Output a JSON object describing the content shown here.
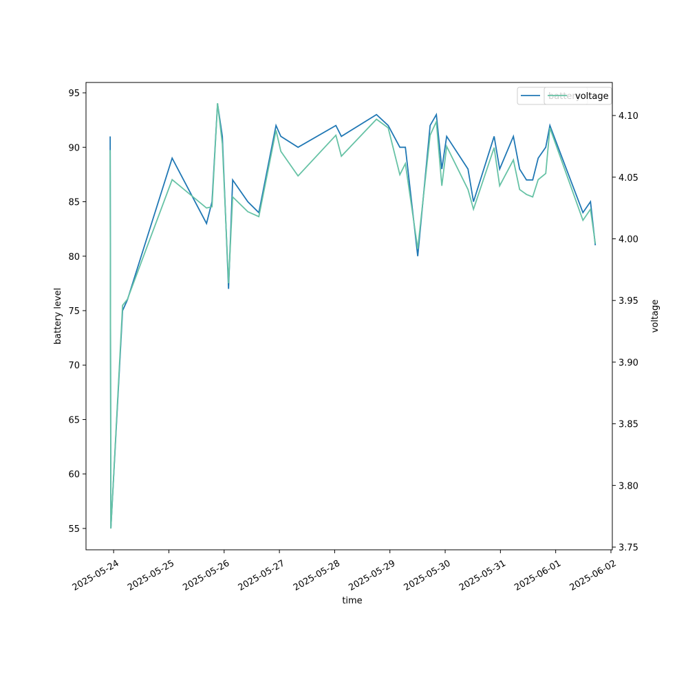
{
  "chart_data": {
    "type": "line",
    "x_label": "time",
    "y_label": "battery level",
    "y2_label": "voltage",
    "x": [
      "2025-05-23T22:30",
      "2025-05-23T22:48",
      "2025-05-24T03:53",
      "2025-05-24T06:00",
      "2025-05-25T01:25",
      "2025-05-25T16:21",
      "2025-05-25T18:44",
      "2025-05-25T21:08",
      "2025-05-25T23:13",
      "2025-05-26T01:55",
      "2025-05-26T03:42",
      "2025-05-26T10:17",
      "2025-05-26T15:04",
      "2025-05-26T22:32",
      "2025-05-27T00:37",
      "2025-05-27T08:06",
      "2025-05-28T00:32",
      "2025-05-28T02:55",
      "2025-05-28T18:10",
      "2025-05-28T23:15",
      "2025-05-29T04:19",
      "2025-05-29T06:43",
      "2025-05-29T12:05",
      "2025-05-29T17:28",
      "2025-05-29T20:10",
      "2025-05-29T22:33",
      "2025-05-30T00:39",
      "2025-05-30T09:55",
      "2025-05-30T12:18",
      "2025-05-30T21:16",
      "2025-05-30T23:40",
      "2025-05-31T05:38",
      "2025-05-31T08:20",
      "2025-05-31T11:19",
      "2025-05-31T14:01",
      "2025-05-31T16:24",
      "2025-05-31T19:41",
      "2025-05-31T21:29",
      "2025-06-01T11:50",
      "2025-06-01T15:07",
      "2025-06-01T17:13"
    ],
    "series": [
      {
        "name": "battery",
        "color": "#1f77b4",
        "values": [
          91,
          55,
          75,
          76,
          89,
          83,
          85,
          94,
          91,
          77,
          87,
          85,
          84,
          92,
          91,
          90,
          92,
          91,
          93,
          92,
          90,
          90,
          80,
          92,
          93,
          88,
          91,
          88,
          85,
          91,
          88,
          91,
          88,
          87,
          87,
          89,
          90,
          92,
          84,
          85,
          81
        ]
      },
      {
        "name": "voltage",
        "color": "#66c2a5",
        "axis": "y2",
        "values": [
          4.072,
          3.765,
          3.946,
          3.951,
          4.048,
          4.025,
          4.026,
          4.11,
          4.077,
          3.964,
          4.034,
          4.022,
          4.018,
          4.088,
          4.071,
          4.051,
          4.084,
          4.067,
          4.097,
          4.09,
          4.052,
          4.061,
          3.992,
          4.084,
          4.095,
          4.043,
          4.075,
          4.04,
          4.024,
          4.074,
          4.043,
          4.064,
          4.04,
          4.036,
          4.034,
          4.048,
          4.053,
          4.09,
          4.015,
          4.024,
          3.996
        ]
      }
    ],
    "xlim": [
      "2025-05-23T12:00",
      "2025-06-02T00:36"
    ],
    "xticks": [
      "2025-05-24",
      "2025-05-25",
      "2025-05-26",
      "2025-05-27",
      "2025-05-28",
      "2025-05-29",
      "2025-05-30",
      "2025-05-31",
      "2025-06-01",
      "2025-06-02"
    ],
    "ylim": [
      53.04,
      95.95
    ],
    "yticks": [
      55,
      60,
      65,
      70,
      75,
      80,
      85,
      90,
      95
    ],
    "y2lim": [
      3.7478,
      4.1268
    ],
    "y2ticks": [
      3.75,
      {
        "value": 3.8,
        "label": "3.80"
      },
      3.85,
      {
        "value": 3.9,
        "label": "3.90"
      },
      3.95,
      {
        "value": 4.0,
        "label": "4.00"
      },
      4.05,
      {
        "value": 4.1,
        "label": "4.10"
      }
    ]
  }
}
